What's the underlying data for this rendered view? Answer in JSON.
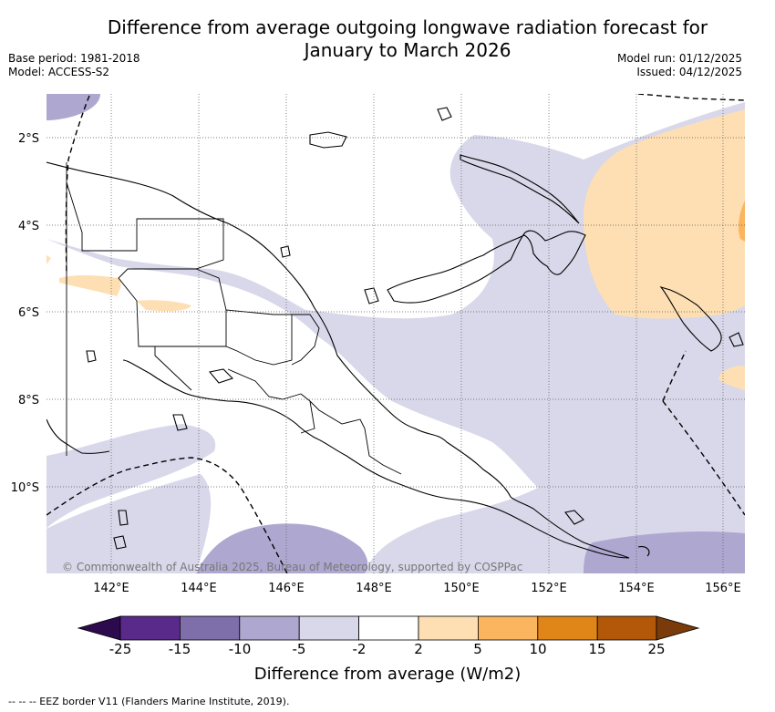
{
  "title_line1": "Difference from average outgoing longwave radiation forecast for",
  "title_line2": "January to March 2026",
  "base_period": "Base period: 1981-2018",
  "model": "Model: ACCESS-S2",
  "model_run": "Model run: 01/12/2025",
  "issued": "Issued: 04/12/2025",
  "copyright": "© Commonwealth of Australia 2025, Bureau of Meteorology, supported by COSPPac",
  "lat_labels": [
    "2°S",
    "4°S",
    "6°S",
    "8°S",
    "10°S"
  ],
  "lon_labels": [
    "142°E",
    "144°E",
    "146°E",
    "148°E",
    "150°E",
    "152°E",
    "154°E",
    "156°E"
  ],
  "colorbar": {
    "ticks": [
      "-25",
      "-15",
      "-10",
      "-5",
      "-2",
      "2",
      "5",
      "10",
      "15",
      "25"
    ],
    "colors": [
      "#2d0a4e",
      "#5a2a8a",
      "#7e6eaa",
      "#aea7d0",
      "#d8d8ea",
      "#ffffff",
      "#fddfb3",
      "#fbb55f",
      "#e08518",
      "#b35808",
      "#7b3a0a"
    ],
    "label": "Difference from average (W/m2)"
  },
  "eez_note": "-- -- -- EEZ border V11 (Flanders Marine Institute, 2019)."
}
